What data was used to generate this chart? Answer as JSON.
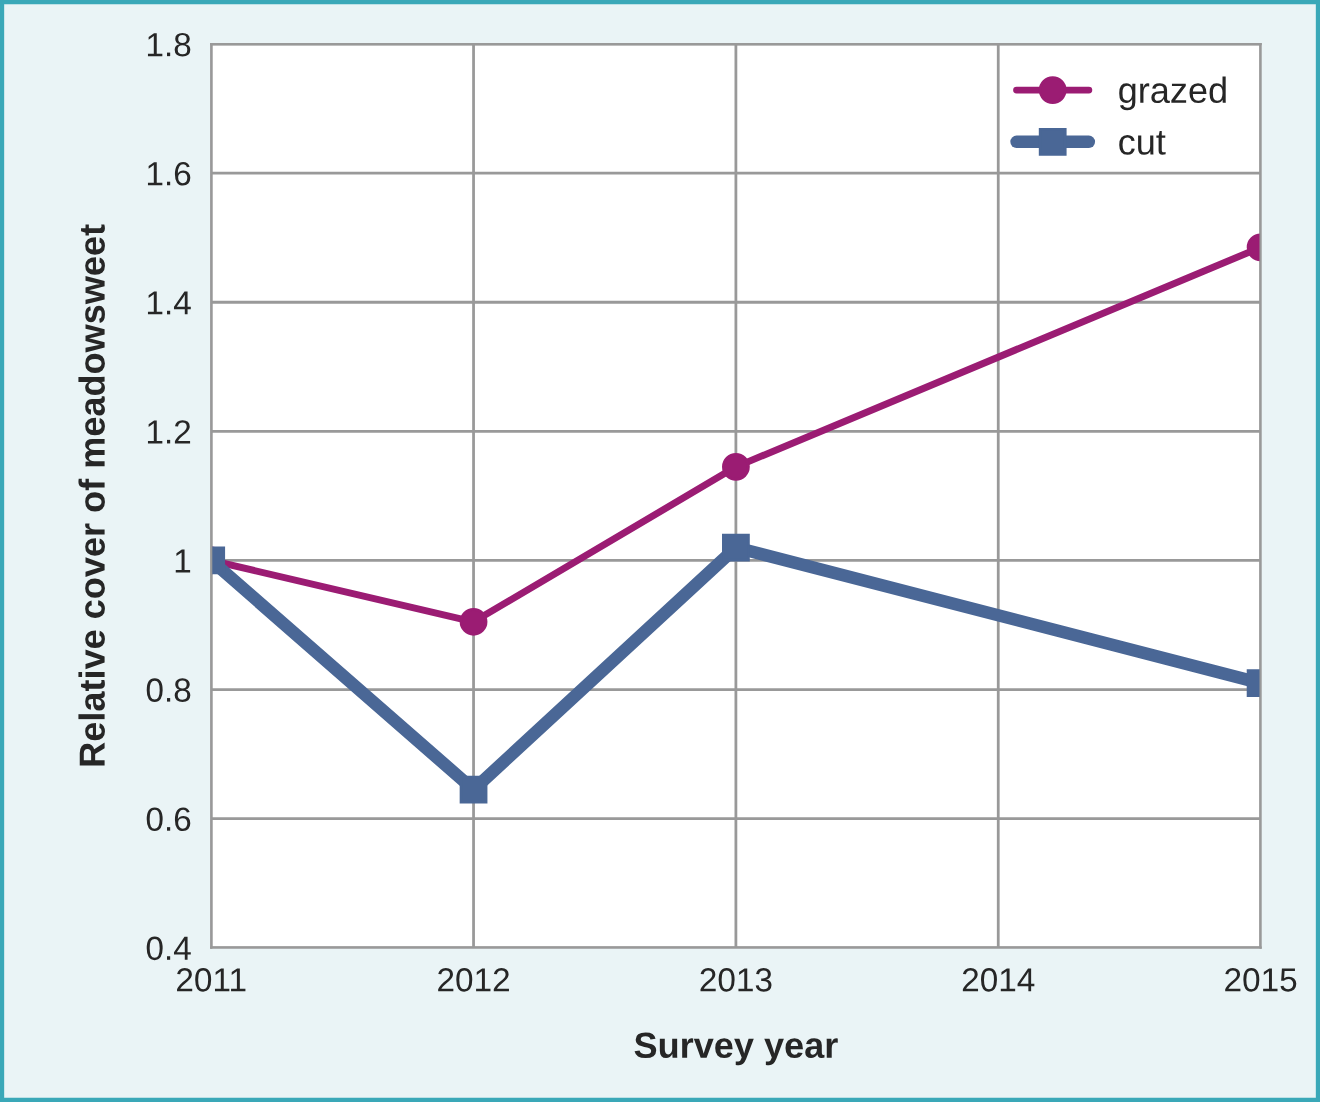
{
  "chart_data": {
    "type": "line",
    "xlabel": "Survey year",
    "ylabel": "Relative cover of meadowsweet",
    "x": [
      2011,
      2012,
      2013,
      2015
    ],
    "series": [
      {
        "name": "grazed",
        "color": "#9b1c73",
        "marker": "circle",
        "values": [
          1.0,
          0.905,
          1.145,
          1.485
        ]
      },
      {
        "name": "cut",
        "color": "#4a6796",
        "marker": "square",
        "values": [
          1.0,
          0.645,
          1.02,
          0.81
        ]
      }
    ],
    "xlim": [
      2011,
      2015
    ],
    "xticks": [
      2011,
      2012,
      2013,
      2014,
      2015
    ],
    "ylim": [
      0.4,
      1.8
    ],
    "yticks": [
      0.4,
      0.6,
      0.8,
      1,
      1.2,
      1.4,
      1.6,
      1.8
    ],
    "grid": true,
    "legend": "top right",
    "line_style": "solid"
  }
}
